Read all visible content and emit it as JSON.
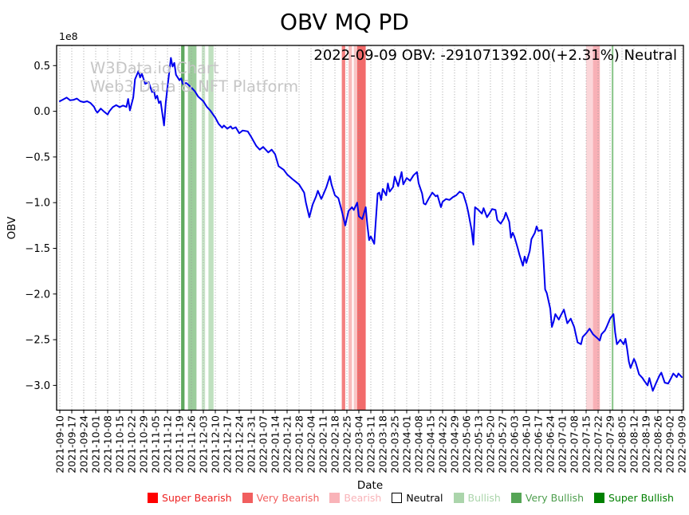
{
  "header": {
    "title": "OBV MQ PD",
    "annotation": "2022-09-09 OBV: -291071392.00(+2.31%) Neutral"
  },
  "watermark": {
    "line1": "W3Data.io Chart",
    "line2": "Web3 Data & NFT Platform"
  },
  "chart_data": {
    "type": "line",
    "title": "OBV MQ PD",
    "annotation": "2022-09-09 OBV: -291071392.00(+2.31%) Neutral",
    "xlabel": "Date",
    "ylabel": "OBV",
    "y_offset_label": "1e8",
    "values_scale": 100000000,
    "line_color": "#0000ee",
    "grid": "vertical-dotted",
    "ylim": [
      -3.27,
      0.72
    ],
    "y_tick_values": [
      0.5,
      0.0,
      -0.5,
      -1.0,
      -1.5,
      -2.0,
      -2.5,
      -3.0
    ],
    "y_tick_labels": [
      "0.5",
      "0.0",
      "−0.5",
      "−1.0",
      "−1.5",
      "−2.0",
      "−2.5",
      "−3.0"
    ],
    "x_tick_labels": [
      "2021-09-10",
      "2021-09-17",
      "2021-09-24",
      "2021-10-01",
      "2021-10-08",
      "2021-10-15",
      "2021-10-22",
      "2021-10-29",
      "2021-11-05",
      "2021-11-12",
      "2021-11-19",
      "2021-11-26",
      "2021-12-03",
      "2021-12-10",
      "2021-12-17",
      "2021-12-24",
      "2021-12-31",
      "2022-01-07",
      "2022-01-14",
      "2022-01-21",
      "2022-01-28",
      "2022-02-04",
      "2022-02-11",
      "2022-02-18",
      "2022-02-25",
      "2022-03-04",
      "2022-03-11",
      "2022-03-18",
      "2022-03-25",
      "2022-04-01",
      "2022-04-08",
      "2022-04-15",
      "2022-04-22",
      "2022-04-29",
      "2022-05-06",
      "2022-05-13",
      "2022-05-20",
      "2022-05-27",
      "2022-06-03",
      "2022-06-10",
      "2022-06-17",
      "2022-06-24",
      "2022-07-01",
      "2022-07-08",
      "2022-07-15",
      "2022-07-22",
      "2022-07-29",
      "2022-08-05",
      "2022-08-12",
      "2022-08-19",
      "2022-08-26",
      "2022-09-02",
      "2022-09-09"
    ],
    "series": {
      "name": "OBV",
      "points": [
        [
          "2021-09-10",
          0.11
        ],
        [
          "2021-09-12",
          0.13
        ],
        [
          "2021-09-14",
          0.15
        ],
        [
          "2021-09-16",
          0.12
        ],
        [
          "2021-09-18",
          0.125
        ],
        [
          "2021-09-20",
          0.14
        ],
        [
          "2021-09-22",
          0.11
        ],
        [
          "2021-09-24",
          0.1
        ],
        [
          "2021-09-26",
          0.11
        ],
        [
          "2021-09-28",
          0.09
        ],
        [
          "2021-09-30",
          0.05
        ],
        [
          "2021-10-01",
          0.01
        ],
        [
          "2021-10-02",
          -0.015
        ],
        [
          "2021-10-04",
          0.03
        ],
        [
          "2021-10-06",
          -0.005
        ],
        [
          "2021-10-08",
          -0.035
        ],
        [
          "2021-10-09",
          0.0
        ],
        [
          "2021-10-11",
          0.045
        ],
        [
          "2021-10-13",
          0.067
        ],
        [
          "2021-10-15",
          0.045
        ],
        [
          "2021-10-17",
          0.063
        ],
        [
          "2021-10-19",
          0.048
        ],
        [
          "2021-10-20",
          0.135
        ],
        [
          "2021-10-21",
          0.01
        ],
        [
          "2021-10-23",
          0.15
        ],
        [
          "2021-10-24",
          0.35
        ],
        [
          "2021-10-26",
          0.44
        ],
        [
          "2021-10-27",
          0.37
        ],
        [
          "2021-10-28",
          0.41
        ],
        [
          "2021-10-30",
          0.3
        ],
        [
          "2021-11-01",
          0.32
        ],
        [
          "2021-11-03",
          0.21
        ],
        [
          "2021-11-04",
          0.23
        ],
        [
          "2021-11-05",
          0.14
        ],
        [
          "2021-11-06",
          0.17
        ],
        [
          "2021-11-07",
          0.09
        ],
        [
          "2021-11-08",
          0.11
        ],
        [
          "2021-11-10",
          -0.155
        ],
        [
          "2021-11-11",
          0.1
        ],
        [
          "2021-11-13",
          0.42
        ],
        [
          "2021-11-14",
          0.585
        ],
        [
          "2021-11-15",
          0.49
        ],
        [
          "2021-11-16",
          0.53
        ],
        [
          "2021-11-17",
          0.4
        ],
        [
          "2021-11-19",
          0.34
        ],
        [
          "2021-11-20",
          0.36
        ],
        [
          "2021-11-21",
          0.3
        ],
        [
          "2021-11-23",
          0.31
        ],
        [
          "2021-11-26",
          0.26
        ],
        [
          "2021-11-28",
          0.22
        ],
        [
          "2021-11-30",
          0.16
        ],
        [
          "2021-12-03",
          0.11
        ],
        [
          "2021-12-05",
          0.05
        ],
        [
          "2021-12-07",
          0.01
        ],
        [
          "2021-12-10",
          -0.07
        ],
        [
          "2021-12-12",
          -0.14
        ],
        [
          "2021-12-14",
          -0.18
        ],
        [
          "2021-12-15",
          -0.155
        ],
        [
          "2021-12-17",
          -0.19
        ],
        [
          "2021-12-19",
          -0.165
        ],
        [
          "2021-12-20",
          -0.19
        ],
        [
          "2021-12-22",
          -0.175
        ],
        [
          "2021-12-24",
          -0.24
        ],
        [
          "2021-12-26",
          -0.21
        ],
        [
          "2021-12-29",
          -0.22
        ],
        [
          "2021-12-31",
          -0.28
        ],
        [
          "2022-01-03",
          -0.38
        ],
        [
          "2022-01-05",
          -0.42
        ],
        [
          "2022-01-07",
          -0.39
        ],
        [
          "2022-01-10",
          -0.45
        ],
        [
          "2022-01-12",
          -0.42
        ],
        [
          "2022-01-14",
          -0.47
        ],
        [
          "2022-01-16",
          -0.6
        ],
        [
          "2022-01-19",
          -0.64
        ],
        [
          "2022-01-21",
          -0.69
        ],
        [
          "2022-01-24",
          -0.74
        ],
        [
          "2022-01-26",
          -0.77
        ],
        [
          "2022-01-28",
          -0.8
        ],
        [
          "2022-01-31",
          -0.89
        ],
        [
          "2022-02-01",
          -1.0
        ],
        [
          "2022-02-03",
          -1.16
        ],
        [
          "2022-02-05",
          -1.02
        ],
        [
          "2022-02-07",
          -0.93
        ],
        [
          "2022-02-08",
          -0.87
        ],
        [
          "2022-02-10",
          -0.96
        ],
        [
          "2022-02-11",
          -0.92
        ],
        [
          "2022-02-13",
          -0.83
        ],
        [
          "2022-02-15",
          -0.71
        ],
        [
          "2022-02-16",
          -0.8
        ],
        [
          "2022-02-18",
          -0.92
        ],
        [
          "2022-02-20",
          -0.95
        ],
        [
          "2022-02-22",
          -1.09
        ],
        [
          "2022-02-24",
          -1.25
        ],
        [
          "2022-02-26",
          -1.09
        ],
        [
          "2022-02-28",
          -1.05
        ],
        [
          "2022-03-01",
          -1.08
        ],
        [
          "2022-03-03",
          -1.0
        ],
        [
          "2022-03-04",
          -1.15
        ],
        [
          "2022-03-06",
          -1.18
        ],
        [
          "2022-03-08",
          -1.05
        ],
        [
          "2022-03-09",
          -1.25
        ],
        [
          "2022-03-10",
          -1.41
        ],
        [
          "2022-03-11",
          -1.37
        ],
        [
          "2022-03-13",
          -1.45
        ],
        [
          "2022-03-15",
          -0.9
        ],
        [
          "2022-03-16",
          -0.89
        ],
        [
          "2022-03-17",
          -0.97
        ],
        [
          "2022-03-18",
          -0.85
        ],
        [
          "2022-03-20",
          -0.92
        ],
        [
          "2022-03-21",
          -0.79
        ],
        [
          "2022-03-22",
          -0.88
        ],
        [
          "2022-03-24",
          -0.83
        ],
        [
          "2022-03-25",
          -0.715
        ],
        [
          "2022-03-27",
          -0.82
        ],
        [
          "2022-03-29",
          -0.665
        ],
        [
          "2022-03-30",
          -0.8
        ],
        [
          "2022-04-01",
          -0.73
        ],
        [
          "2022-04-03",
          -0.76
        ],
        [
          "2022-04-05",
          -0.7
        ],
        [
          "2022-04-07",
          -0.665
        ],
        [
          "2022-04-08",
          -0.79
        ],
        [
          "2022-04-10",
          -0.9
        ],
        [
          "2022-04-11",
          -1.01
        ],
        [
          "2022-04-12",
          -1.02
        ],
        [
          "2022-04-14",
          -0.95
        ],
        [
          "2022-04-16",
          -0.89
        ],
        [
          "2022-04-18",
          -0.93
        ],
        [
          "2022-04-19",
          -0.92
        ],
        [
          "2022-04-21",
          -1.05
        ],
        [
          "2022-04-22",
          -0.99
        ],
        [
          "2022-04-24",
          -0.96
        ],
        [
          "2022-04-26",
          -0.97
        ],
        [
          "2022-04-28",
          -0.94
        ],
        [
          "2022-04-30",
          -0.92
        ],
        [
          "2022-05-02",
          -0.88
        ],
        [
          "2022-05-04",
          -0.9
        ],
        [
          "2022-05-06",
          -1.02
        ],
        [
          "2022-05-07",
          -1.1
        ],
        [
          "2022-05-09",
          -1.3
        ],
        [
          "2022-05-10",
          -1.46
        ],
        [
          "2022-05-11",
          -1.05
        ],
        [
          "2022-05-13",
          -1.08
        ],
        [
          "2022-05-15",
          -1.12
        ],
        [
          "2022-05-16",
          -1.06
        ],
        [
          "2022-05-18",
          -1.16
        ],
        [
          "2022-05-19",
          -1.13
        ],
        [
          "2022-05-21",
          -1.07
        ],
        [
          "2022-05-23",
          -1.08
        ],
        [
          "2022-05-24",
          -1.19
        ],
        [
          "2022-05-26",
          -1.23
        ],
        [
          "2022-05-28",
          -1.17
        ],
        [
          "2022-05-29",
          -1.11
        ],
        [
          "2022-05-31",
          -1.21
        ],
        [
          "2022-06-01",
          -1.385
        ],
        [
          "2022-06-02",
          -1.33
        ],
        [
          "2022-06-03",
          -1.37
        ],
        [
          "2022-06-05",
          -1.5
        ],
        [
          "2022-06-06",
          -1.57
        ],
        [
          "2022-06-08",
          -1.69
        ],
        [
          "2022-06-09",
          -1.59
        ],
        [
          "2022-06-10",
          -1.66
        ],
        [
          "2022-06-12",
          -1.53
        ],
        [
          "2022-06-13",
          -1.4
        ],
        [
          "2022-06-15",
          -1.33
        ],
        [
          "2022-06-16",
          -1.26
        ],
        [
          "2022-06-17",
          -1.31
        ],
        [
          "2022-06-19",
          -1.3
        ],
        [
          "2022-06-20",
          -1.6
        ],
        [
          "2022-06-21",
          -1.95
        ],
        [
          "2022-06-22",
          -1.99
        ],
        [
          "2022-06-24",
          -2.16
        ],
        [
          "2022-06-25",
          -2.36
        ],
        [
          "2022-06-26",
          -2.3
        ],
        [
          "2022-06-27",
          -2.22
        ],
        [
          "2022-06-29",
          -2.28
        ],
        [
          "2022-06-30",
          -2.24
        ],
        [
          "2022-07-02",
          -2.17
        ],
        [
          "2022-07-04",
          -2.32
        ],
        [
          "2022-07-06",
          -2.27
        ],
        [
          "2022-07-08",
          -2.36
        ],
        [
          "2022-07-10",
          -2.53
        ],
        [
          "2022-07-12",
          -2.55
        ],
        [
          "2022-07-13",
          -2.47
        ],
        [
          "2022-07-15",
          -2.43
        ],
        [
          "2022-07-17",
          -2.38
        ],
        [
          "2022-07-19",
          -2.44
        ],
        [
          "2022-07-22",
          -2.49
        ],
        [
          "2022-07-23",
          -2.51
        ],
        [
          "2022-07-24",
          -2.44
        ],
        [
          "2022-07-26",
          -2.4
        ],
        [
          "2022-07-27",
          -2.36
        ],
        [
          "2022-07-29",
          -2.27
        ],
        [
          "2022-07-31",
          -2.22
        ],
        [
          "2022-08-01",
          -2.42
        ],
        [
          "2022-08-02",
          -2.55
        ],
        [
          "2022-08-04",
          -2.5
        ],
        [
          "2022-08-06",
          -2.55
        ],
        [
          "2022-08-07",
          -2.49
        ],
        [
          "2022-08-08",
          -2.6
        ],
        [
          "2022-08-09",
          -2.74
        ],
        [
          "2022-08-10",
          -2.81
        ],
        [
          "2022-08-12",
          -2.71
        ],
        [
          "2022-08-13",
          -2.75
        ],
        [
          "2022-08-15",
          -2.88
        ],
        [
          "2022-08-17",
          -2.92
        ],
        [
          "2022-08-18",
          -2.95
        ],
        [
          "2022-08-20",
          -3.0
        ],
        [
          "2022-08-21",
          -2.92
        ],
        [
          "2022-08-23",
          -3.06
        ],
        [
          "2022-08-25",
          -2.97
        ],
        [
          "2022-08-27",
          -2.89
        ],
        [
          "2022-08-28",
          -2.86
        ],
        [
          "2022-08-30",
          -2.97
        ],
        [
          "2022-09-01",
          -2.98
        ],
        [
          "2022-09-03",
          -2.91
        ],
        [
          "2022-09-04",
          -2.87
        ],
        [
          "2022-09-06",
          -2.91
        ],
        [
          "2022-09-07",
          -2.87
        ],
        [
          "2022-09-08",
          -2.89
        ],
        [
          "2022-09-09",
          -2.91
        ]
      ]
    },
    "signal_bands": [
      {
        "from": "2021-11-20",
        "to": "2021-11-22",
        "category": "Very Bullish",
        "color": "#5fa95f"
      },
      {
        "from": "2021-11-24",
        "to": "2021-11-29",
        "category": "Bullish",
        "color": "#9ccd9c"
      },
      {
        "from": "2021-12-02",
        "to": "2021-12-04",
        "category": "Bullish",
        "color": "#c9e5c9"
      },
      {
        "from": "2021-12-06",
        "to": "2021-12-09",
        "category": "Bullish",
        "color": "#bfe0bf"
      },
      {
        "from": "2022-02-22",
        "to": "2022-02-24",
        "category": "Very Bearish",
        "color": "#f48080"
      },
      {
        "from": "2022-02-26",
        "to": "2022-02-28",
        "category": "Bearish",
        "color": "#f9bcbc"
      },
      {
        "from": "2022-03-01",
        "to": "2022-03-03",
        "category": "Bearish",
        "color": "#f9c6c6"
      },
      {
        "from": "2022-03-03",
        "to": "2022-03-08",
        "category": "Very Bearish",
        "color": "#f26b6b"
      },
      {
        "from": "2022-07-15",
        "to": "2022-07-19",
        "category": "Bearish",
        "color": "#fbd6d9"
      },
      {
        "from": "2022-07-19",
        "to": "2022-07-23",
        "category": "Bearish",
        "color": "#f8b0b6"
      },
      {
        "from": "2022-07-30",
        "to": "2022-07-31",
        "category": "Very Bullish",
        "color": "#8cc68c"
      }
    ],
    "legend_position": "bottom-center"
  },
  "legend": {
    "items": [
      {
        "label": "Super Bearish",
        "color": "#ff0000",
        "text_color": "#ee2222",
        "border": "#ff0000"
      },
      {
        "label": "Very Bearish",
        "color": "#f15e5e",
        "text_color": "#f15e5e",
        "border": "#f15e5e"
      },
      {
        "label": "Bearish",
        "color": "#f9b3b8",
        "text_color": "#f9b3b8",
        "border": "#f9b3b8"
      },
      {
        "label": "Neutral",
        "color": "#ffffff",
        "text_color": "#000000",
        "border": "#000000"
      },
      {
        "label": "Bullish",
        "color": "#abd5ab",
        "text_color": "#abd5ab",
        "border": "#abd5ab"
      },
      {
        "label": "Very Bullish",
        "color": "#56a556",
        "text_color": "#4d9e4d",
        "border": "#56a556"
      },
      {
        "label": "Super Bullish",
        "color": "#008000",
        "text_color": "#008000",
        "border": "#008000"
      }
    ]
  }
}
